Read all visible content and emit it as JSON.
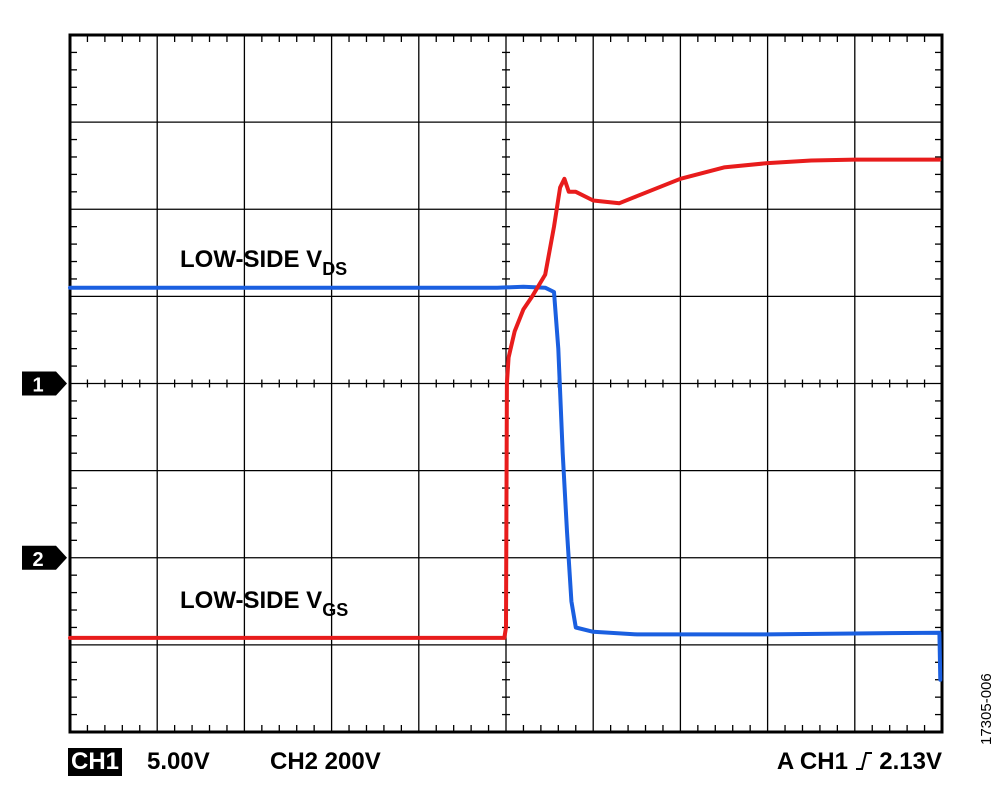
{
  "chart_data": {
    "type": "line",
    "title": "",
    "xlabel": "",
    "ylabel": "",
    "grid": true,
    "x_divisions": 10,
    "y_divisions": 8,
    "series": [
      {
        "label": "LOW-SIDE VDS",
        "label_main": "LOW-SIDE V",
        "label_sub": "DS",
        "channel": "CH2",
        "color": "#1a5fe0",
        "points": [
          [
            0.0,
            5.1
          ],
          [
            4.9,
            5.1
          ],
          [
            5.2,
            5.11
          ],
          [
            5.45,
            5.1
          ],
          [
            5.55,
            5.05
          ],
          [
            5.6,
            4.4
          ],
          [
            5.65,
            3.2
          ],
          [
            5.7,
            2.3
          ],
          [
            5.75,
            1.5
          ],
          [
            5.8,
            1.2
          ],
          [
            6.0,
            1.15
          ],
          [
            6.5,
            1.12
          ],
          [
            8.0,
            1.12
          ],
          [
            9.0,
            1.13
          ],
          [
            9.97,
            1.14
          ],
          [
            9.98,
            0.6
          ]
        ]
      },
      {
        "label": "LOW-SIDE VGS",
        "label_main": "LOW-SIDE V",
        "label_sub": "GS",
        "channel": "CH1",
        "color": "#e81c1c",
        "points": [
          [
            0.0,
            1.08
          ],
          [
            4.98,
            1.08
          ],
          [
            5.0,
            1.2
          ],
          [
            5.01,
            4.0
          ],
          [
            5.03,
            4.3
          ],
          [
            5.1,
            4.6
          ],
          [
            5.2,
            4.85
          ],
          [
            5.3,
            5.0
          ],
          [
            5.45,
            5.25
          ],
          [
            5.55,
            5.8
          ],
          [
            5.62,
            6.25
          ],
          [
            5.67,
            6.35
          ],
          [
            5.72,
            6.2
          ],
          [
            5.8,
            6.2
          ],
          [
            6.0,
            6.1
          ],
          [
            6.3,
            6.07
          ],
          [
            6.5,
            6.15
          ],
          [
            7.0,
            6.35
          ],
          [
            7.5,
            6.48
          ],
          [
            8.0,
            6.53
          ],
          [
            8.5,
            6.56
          ],
          [
            9.0,
            6.57
          ],
          [
            9.5,
            6.57
          ],
          [
            9.97,
            6.57
          ]
        ]
      }
    ]
  },
  "markers": {
    "ch1": "1",
    "ch2": "2",
    "ch1_level_div": 4,
    "ch2_level_div": 2
  },
  "footer": {
    "ch1_badge": "CH1",
    "ch1_scale": "5.00V",
    "ch2_scale": "CH2 200V",
    "trigger_prefix": "A  CH1",
    "trigger_level": "2.13V"
  },
  "figure_id": "17305-006"
}
